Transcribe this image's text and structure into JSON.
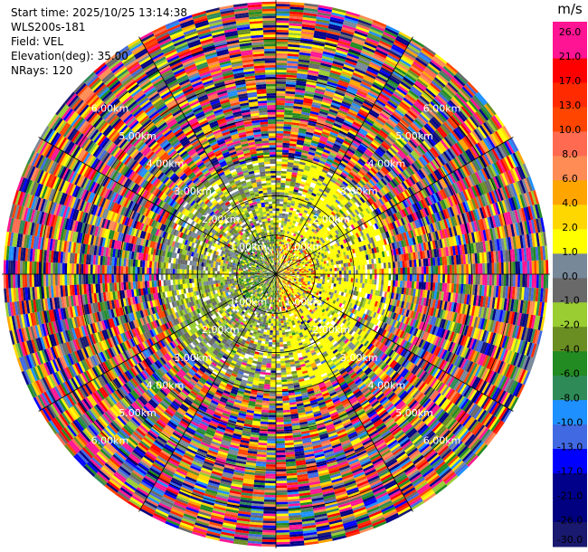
{
  "header": {
    "start_time": "Start time: 2025/10/25 13:14:38",
    "instrument": "WLS200s-181",
    "field": "Field: VEL",
    "elevation": "Elevation(deg): 35.00",
    "nrays": "NRays: 120"
  },
  "chart_data": {
    "type": "heatmap",
    "projection": "polar-ppi",
    "field": "VEL",
    "units": "m/s",
    "n_rays": 120,
    "max_range_km": 7.0,
    "range_rings_km": [
      1.0,
      2.0,
      3.0,
      4.0,
      5.0,
      6.0
    ],
    "ring_labels": [
      "1.00km",
      "2.00km",
      "3.00km",
      "4.00km",
      "5.00km",
      "6.00km"
    ],
    "spoke_angles_deg": [
      0,
      30,
      60,
      90,
      120,
      150,
      180,
      210,
      240,
      270,
      300,
      330
    ],
    "colorbar": {
      "unit_label": "m/s",
      "ticks": [
        "26.0",
        "21.0",
        "17.0",
        "13.0",
        "10.0",
        "8.0",
        "6.0",
        "4.0",
        "2.0",
        "1.0",
        "0.0",
        "-1.0",
        "-2.0",
        "-4.0",
        "-6.0",
        "-8.0",
        "-10.0",
        "-13.0",
        "-17.0",
        "-21.0",
        "-26.0",
        "-30.0"
      ],
      "colors": [
        "#ff1493",
        "#ff1493",
        "#ff0000",
        "#ff2a00",
        "#ff4500",
        "#ff6a50",
        "#ff8c55",
        "#ffa500",
        "#ffd700",
        "#ffff00",
        "#778899",
        "#696969",
        "#9acd32",
        "#6b8e23",
        "#228b22",
        "#2e8b57",
        "#1e90ff",
        "#4169e1",
        "#0000ff",
        "#00008b",
        "#000080",
        "#191970"
      ]
    },
    "description_of_field": {
      "inner_region_km": 3.0,
      "inner_dominant_values_ms": [
        1.0,
        2.0,
        4.0,
        0.0,
        -1.0,
        -2.0
      ],
      "outer_region": "noise (full color range)"
    }
  }
}
